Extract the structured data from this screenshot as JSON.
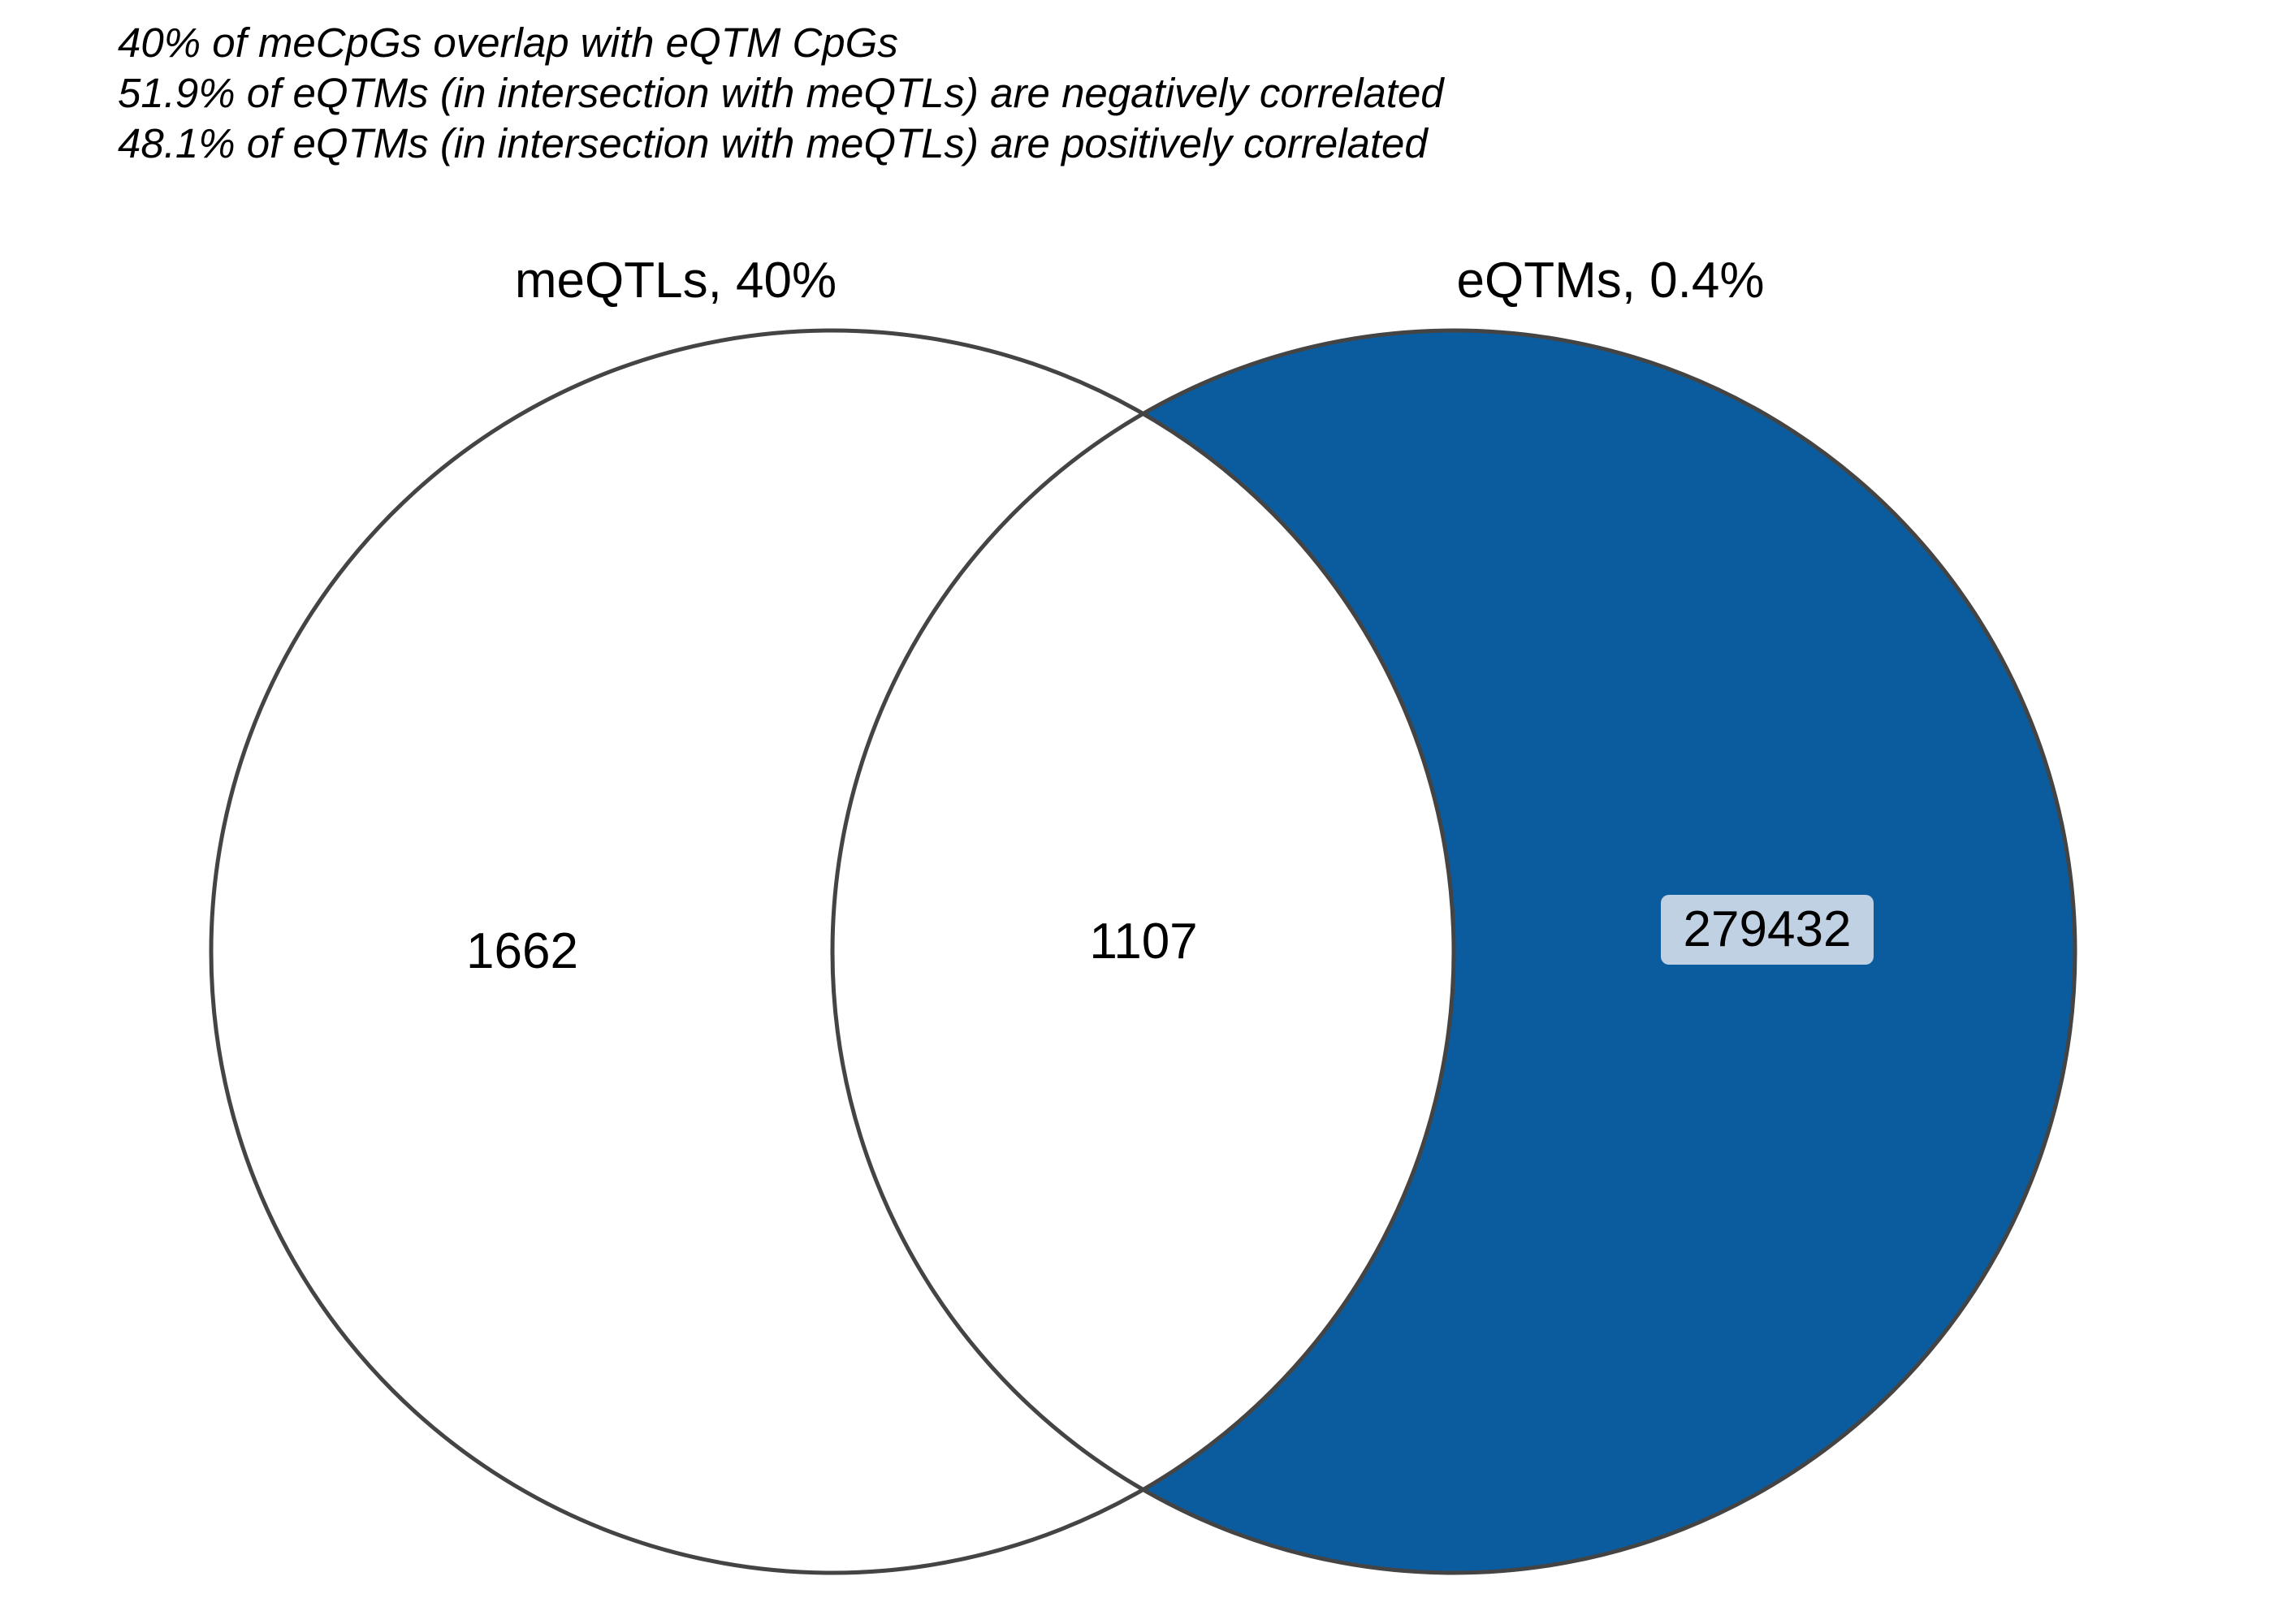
{
  "notes": [
    "40% of meCpGs overlap with eQTM CpGs",
    "51.9% of eQTMs (in intersection with meQTLs) are negatively correlated",
    "48.1% of eQTMs (in intersection with meQTLs) are positively correlated"
  ],
  "venn": {
    "sets": [
      {
        "label": "meQTLs, 40%",
        "fill": "#ffffff"
      },
      {
        "label": "eQTMs, 0.4%",
        "fill": "#0b5c9e"
      }
    ],
    "regions": {
      "only_meqtls": "1662",
      "intersection": "1107",
      "only_eqtms": "279432"
    },
    "colors": {
      "outline": "#444444",
      "highlight_box": "#bfd1e3",
      "text": "#000000"
    }
  }
}
